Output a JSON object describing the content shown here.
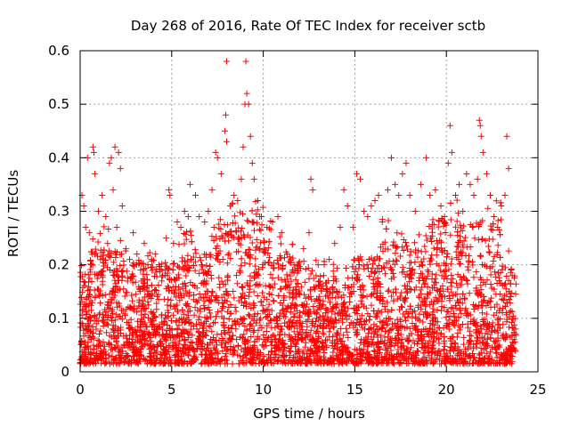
{
  "chart_data": {
    "type": "scatter",
    "title": "Day 268 of 2016, Rate Of TEC Index for receiver sctb",
    "xlabel": "GPS time / hours",
    "ylabel": "ROTI / TECUs",
    "xlim": [
      0,
      25
    ],
    "ylim": [
      0,
      0.6
    ],
    "xticks": [
      0,
      5,
      10,
      15,
      20,
      25
    ],
    "xtick_labels": [
      "0",
      "5",
      "10",
      "15",
      "20",
      "25"
    ],
    "yticks": [
      0,
      0.1,
      0.2,
      0.3,
      0.4,
      0.5,
      0.6
    ],
    "ytick_labels": [
      "0",
      "0.1",
      "0.2",
      "0.3",
      "0.4",
      "0.5",
      "0.6"
    ],
    "grid": true,
    "marker": "plus",
    "series": [
      {
        "name": "ROTI",
        "color": "#ff0000",
        "points": [
          [
            0.1,
            0.33
          ],
          [
            0.2,
            0.31
          ],
          [
            0.3,
            0.27
          ],
          [
            0.4,
            0.4
          ],
          [
            0.5,
            0.26
          ],
          [
            0.6,
            0.2
          ],
          [
            0.7,
            0.42
          ],
          [
            0.75,
            0.41
          ],
          [
            0.8,
            0.37
          ],
          [
            1.0,
            0.3
          ],
          [
            1.2,
            0.33
          ],
          [
            1.4,
            0.29
          ],
          [
            1.5,
            0.24
          ],
          [
            1.6,
            0.39
          ],
          [
            1.7,
            0.4
          ],
          [
            1.8,
            0.34
          ],
          [
            1.9,
            0.42
          ],
          [
            2.0,
            0.27
          ],
          [
            2.1,
            0.41
          ],
          [
            2.2,
            0.38
          ],
          [
            2.3,
            0.31
          ],
          [
            2.5,
            0.23
          ],
          [
            2.7,
            0.21
          ],
          [
            2.9,
            0.26
          ],
          [
            3.1,
            0.22
          ],
          [
            3.3,
            0.19
          ],
          [
            3.5,
            0.24
          ],
          [
            3.7,
            0.2
          ],
          [
            3.9,
            0.21
          ],
          [
            4.1,
            0.22
          ],
          [
            4.3,
            0.2
          ],
          [
            4.5,
            0.18
          ],
          [
            4.7,
            0.25
          ],
          [
            4.85,
            0.34
          ],
          [
            4.9,
            0.33
          ],
          [
            5.1,
            0.24
          ],
          [
            5.3,
            0.28
          ],
          [
            5.5,
            0.27
          ],
          [
            5.7,
            0.3
          ],
          [
            5.9,
            0.29
          ],
          [
            6.0,
            0.35
          ],
          [
            6.3,
            0.33
          ],
          [
            6.5,
            0.29
          ],
          [
            6.8,
            0.28
          ],
          [
            7.0,
            0.3
          ],
          [
            7.2,
            0.34
          ],
          [
            7.4,
            0.41
          ],
          [
            7.5,
            0.4
          ],
          [
            7.7,
            0.37
          ],
          [
            7.9,
            0.45
          ],
          [
            7.95,
            0.48
          ],
          [
            8.0,
            0.43
          ],
          [
            8.0,
            0.58
          ],
          [
            8.2,
            0.31
          ],
          [
            8.4,
            0.33
          ],
          [
            8.6,
            0.32
          ],
          [
            8.8,
            0.36
          ],
          [
            8.9,
            0.42
          ],
          [
            9.0,
            0.5
          ],
          [
            9.05,
            0.58
          ],
          [
            9.1,
            0.52
          ],
          [
            9.2,
            0.5
          ],
          [
            9.3,
            0.44
          ],
          [
            9.4,
            0.39
          ],
          [
            9.5,
            0.36
          ],
          [
            9.7,
            0.32
          ],
          [
            9.9,
            0.29
          ],
          [
            10.2,
            0.27
          ],
          [
            10.5,
            0.28
          ],
          [
            10.8,
            0.29
          ],
          [
            11.0,
            0.26
          ],
          [
            11.3,
            0.22
          ],
          [
            11.6,
            0.19
          ],
          [
            11.9,
            0.2
          ],
          [
            12.2,
            0.23
          ],
          [
            12.5,
            0.26
          ],
          [
            12.6,
            0.36
          ],
          [
            12.7,
            0.34
          ],
          [
            13.0,
            0.2
          ],
          [
            13.3,
            0.18
          ],
          [
            13.6,
            0.21
          ],
          [
            13.9,
            0.24
          ],
          [
            14.2,
            0.27
          ],
          [
            14.4,
            0.34
          ],
          [
            14.6,
            0.31
          ],
          [
            14.9,
            0.27
          ],
          [
            15.1,
            0.37
          ],
          [
            15.3,
            0.36
          ],
          [
            15.5,
            0.3
          ],
          [
            15.7,
            0.29
          ],
          [
            15.9,
            0.31
          ],
          [
            16.1,
            0.32
          ],
          [
            16.3,
            0.33
          ],
          [
            16.5,
            0.28
          ],
          [
            16.8,
            0.34
          ],
          [
            17.0,
            0.4
          ],
          [
            17.2,
            0.35
          ],
          [
            17.4,
            0.33
          ],
          [
            17.6,
            0.37
          ],
          [
            17.8,
            0.39
          ],
          [
            18.0,
            0.33
          ],
          [
            18.3,
            0.3
          ],
          [
            18.6,
            0.35
          ],
          [
            18.9,
            0.4
          ],
          [
            19.1,
            0.33
          ],
          [
            19.4,
            0.34
          ],
          [
            19.7,
            0.31
          ],
          [
            19.9,
            0.29
          ],
          [
            20.1,
            0.39
          ],
          [
            20.2,
            0.46
          ],
          [
            20.3,
            0.41
          ],
          [
            20.5,
            0.33
          ],
          [
            20.7,
            0.35
          ],
          [
            20.9,
            0.3
          ],
          [
            21.1,
            0.37
          ],
          [
            21.3,
            0.35
          ],
          [
            21.5,
            0.33
          ],
          [
            21.7,
            0.36
          ],
          [
            21.8,
            0.47
          ],
          [
            21.85,
            0.46
          ],
          [
            21.9,
            0.44
          ],
          [
            22.0,
            0.41
          ],
          [
            22.2,
            0.37
          ],
          [
            22.4,
            0.33
          ],
          [
            22.6,
            0.29
          ],
          [
            22.8,
            0.27
          ],
          [
            23.0,
            0.31
          ],
          [
            23.2,
            0.33
          ],
          [
            23.3,
            0.44
          ],
          [
            23.4,
            0.38
          ],
          [
            23.6,
            0.18
          ]
        ]
      }
    ],
    "density_note": "Thousands of additional points lie between 0.01 and ~0.30, with the densest band from 0.02 to 0.18 across 0–23.8 hours."
  }
}
